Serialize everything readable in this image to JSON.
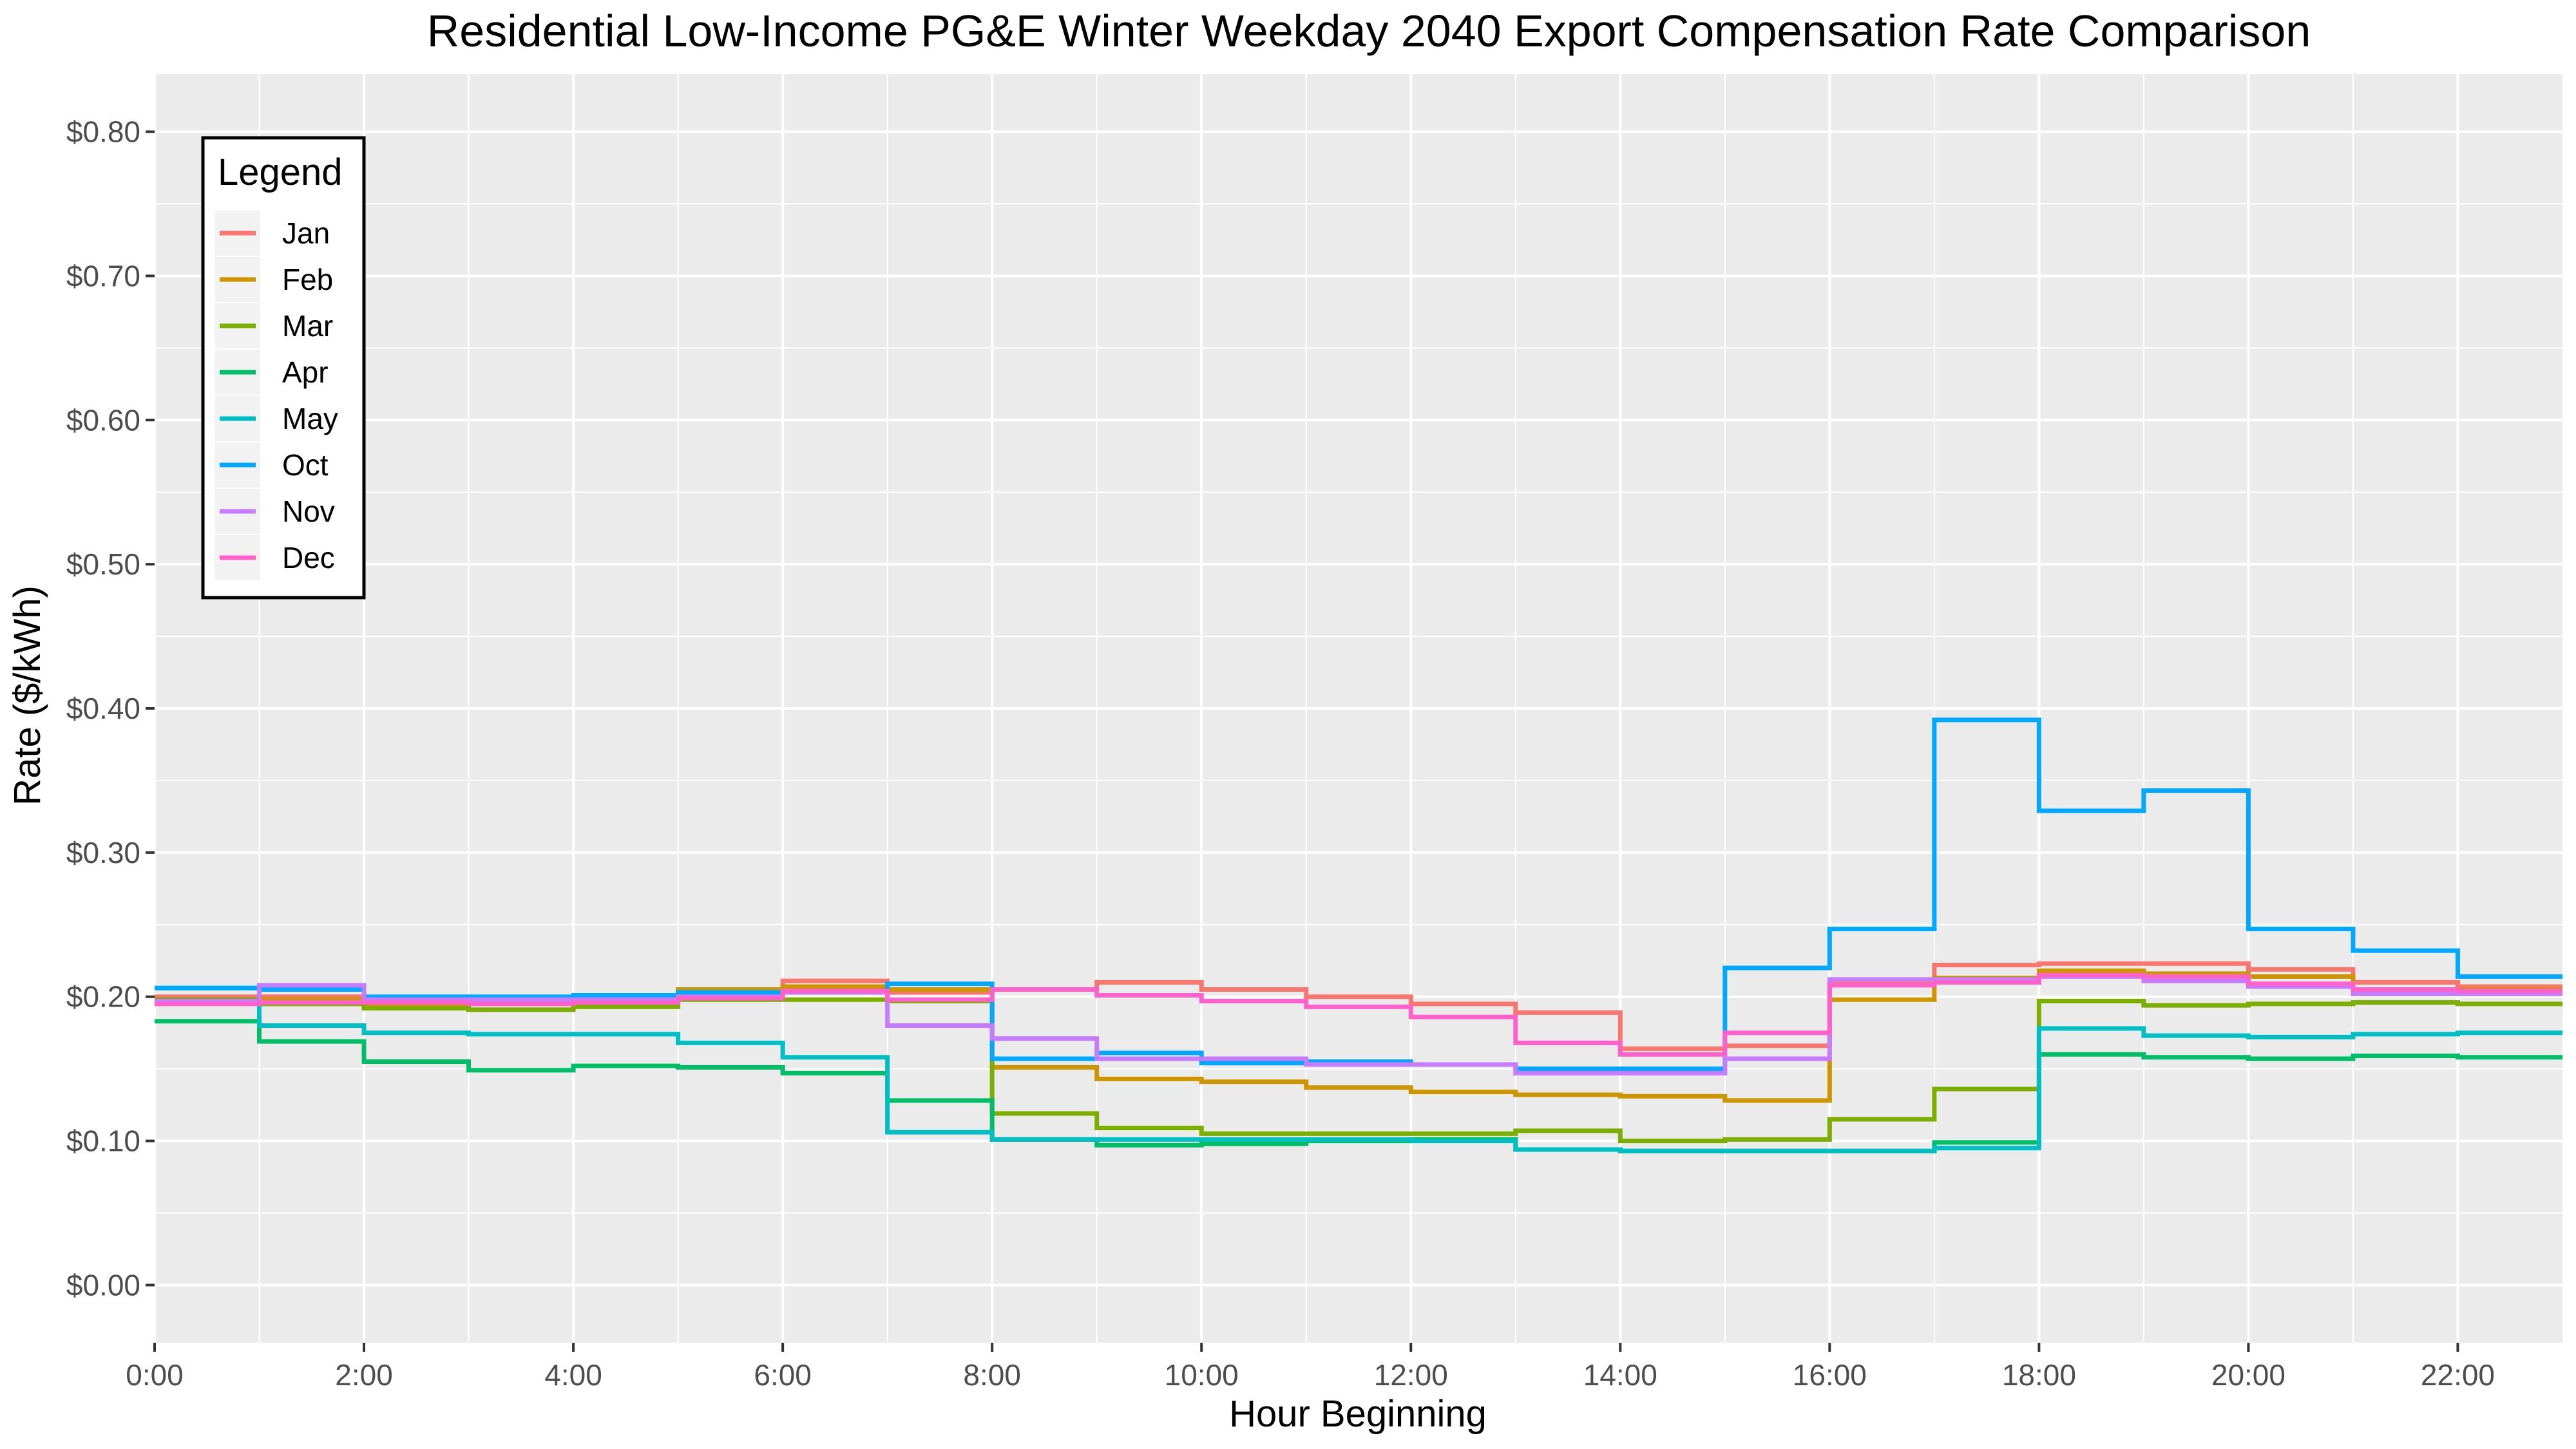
{
  "chart_data": {
    "type": "line",
    "step": true,
    "title": "Residential Low-Income PG&E Winter Weekday 2040 Export Compensation Rate Comparison",
    "xlabel": "Hour Beginning",
    "ylabel": "Rate ($/kWh)",
    "xlim": [
      0,
      23
    ],
    "ylim": [
      -0.04,
      0.84
    ],
    "grid": true,
    "legend_title": "Legend",
    "legend_position": "top-left",
    "x_ticks": [
      0,
      2,
      4,
      6,
      8,
      10,
      12,
      14,
      16,
      18,
      20,
      22
    ],
    "x_tick_labels": [
      "0:00",
      "2:00",
      "4:00",
      "6:00",
      "8:00",
      "10:00",
      "12:00",
      "14:00",
      "16:00",
      "18:00",
      "20:00",
      "22:00"
    ],
    "y_ticks": [
      0,
      0.1,
      0.2,
      0.3,
      0.4,
      0.5,
      0.6,
      0.7,
      0.8
    ],
    "y_tick_labels": [
      "$0.00",
      "$0.10",
      "$0.20",
      "$0.30",
      "$0.40",
      "$0.50",
      "$0.60",
      "$0.70",
      "$0.80"
    ],
    "x": [
      0,
      1,
      2,
      3,
      4,
      5,
      6,
      7,
      8,
      9,
      10,
      11,
      12,
      13,
      14,
      15,
      16,
      17,
      18,
      19,
      20,
      21,
      22,
      23
    ],
    "series": [
      {
        "name": "Jan",
        "color": "#F8766D",
        "values": [
          0.2,
          0.2,
          0.197,
          0.197,
          0.198,
          0.202,
          0.211,
          0.203,
          0.205,
          0.21,
          0.205,
          0.2,
          0.195,
          0.189,
          0.164,
          0.166,
          0.21,
          0.222,
          0.223,
          0.223,
          0.219,
          0.21,
          0.207,
          0.207
        ]
      },
      {
        "name": "Feb",
        "color": "#CD9600",
        "values": [
          0.198,
          0.198,
          0.195,
          0.195,
          0.198,
          0.205,
          0.207,
          0.205,
          0.151,
          0.143,
          0.141,
          0.137,
          0.134,
          0.132,
          0.131,
          0.128,
          0.198,
          0.213,
          0.218,
          0.216,
          0.214,
          0.205,
          0.205,
          0.205
        ]
      },
      {
        "name": "Mar",
        "color": "#7CAE00",
        "values": [
          0.198,
          0.195,
          0.192,
          0.191,
          0.193,
          0.198,
          0.198,
          0.197,
          0.119,
          0.109,
          0.105,
          0.105,
          0.105,
          0.107,
          0.1,
          0.101,
          0.115,
          0.136,
          0.197,
          0.194,
          0.195,
          0.196,
          0.195,
          0.195
        ]
      },
      {
        "name": "Apr",
        "color": "#00BE67",
        "values": [
          0.183,
          0.169,
          0.155,
          0.149,
          0.152,
          0.151,
          0.147,
          0.128,
          0.101,
          0.097,
          0.098,
          0.1,
          0.101,
          0.094,
          0.093,
          0.093,
          0.093,
          0.099,
          0.16,
          0.158,
          0.157,
          0.159,
          0.158,
          0.158
        ]
      },
      {
        "name": "May",
        "color": "#00BFC4",
        "values": [
          0.206,
          0.18,
          0.175,
          0.174,
          0.174,
          0.168,
          0.158,
          0.106,
          0.101,
          0.101,
          0.101,
          0.101,
          0.1,
          0.094,
          0.093,
          0.093,
          0.093,
          0.095,
          0.178,
          0.173,
          0.172,
          0.174,
          0.175,
          0.175
        ]
      },
      {
        "name": "Oct",
        "color": "#00A9FF",
        "values": [
          0.206,
          0.205,
          0.2,
          0.2,
          0.201,
          0.203,
          0.203,
          0.209,
          0.157,
          0.161,
          0.154,
          0.155,
          0.153,
          0.15,
          0.15,
          0.22,
          0.247,
          0.392,
          0.329,
          0.343,
          0.247,
          0.232,
          0.214,
          0.214
        ]
      },
      {
        "name": "Nov",
        "color": "#C77CFF",
        "values": [
          0.197,
          0.208,
          0.198,
          0.198,
          0.198,
          0.2,
          0.203,
          0.18,
          0.171,
          0.157,
          0.157,
          0.153,
          0.153,
          0.147,
          0.147,
          0.157,
          0.212,
          0.212,
          0.214,
          0.211,
          0.207,
          0.202,
          0.202,
          0.202
        ]
      },
      {
        "name": "Dec",
        "color": "#FF61CC",
        "values": [
          0.195,
          0.196,
          0.196,
          0.195,
          0.196,
          0.199,
          0.204,
          0.198,
          0.205,
          0.201,
          0.197,
          0.193,
          0.186,
          0.168,
          0.16,
          0.175,
          0.208,
          0.21,
          0.215,
          0.214,
          0.209,
          0.205,
          0.204,
          0.204
        ]
      }
    ]
  }
}
